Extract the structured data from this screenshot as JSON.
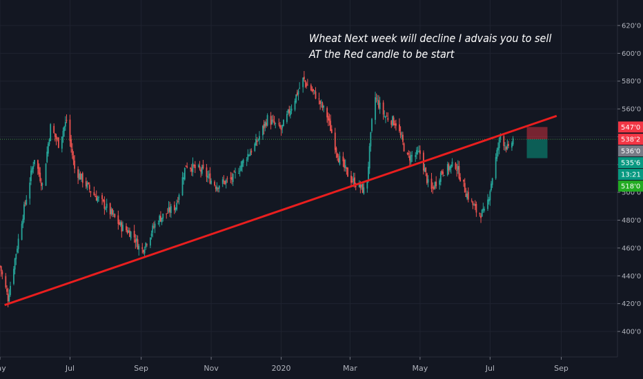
{
  "chart_data": {
    "type": "candlestick",
    "title": "",
    "annotation": [
      "Wheat Next week will decline I advais you to sell",
      "AT the Red candle to be start"
    ],
    "ylim": [
      3800,
      6300
    ],
    "y_ticks": [
      "620'0",
      "600'0",
      "580'0",
      "560'0",
      "540'0",
      "520'0",
      "500'0",
      "480'0",
      "460'0",
      "440'0",
      "420'0",
      "400'0"
    ],
    "y_tick_values": [
      6200,
      6000,
      5800,
      5600,
      5400,
      5200,
      5000,
      4800,
      4600,
      4400,
      4200,
      4000
    ],
    "x_ticks": [
      "May",
      "Jul",
      "Sep",
      "Nov",
      "2020",
      "Mar",
      "May",
      "Jul",
      "Sep"
    ],
    "x_tick_values": [
      "2019-05-01",
      "2019-07-01",
      "2019-09-01",
      "2019-11-01",
      "2020-01-01",
      "2020-03-01",
      "2020-05-01",
      "2020-07-01",
      "2020-09-01"
    ],
    "x_range": [
      "2019-05-01",
      "2020-10-20"
    ],
    "price_path": [
      {
        "date": "2019-05-01",
        "price": 4470
      },
      {
        "date": "2019-05-08",
        "price": 4240
      },
      {
        "date": "2019-05-20",
        "price": 4800
      },
      {
        "date": "2019-05-31",
        "price": 5250
      },
      {
        "date": "2019-06-07",
        "price": 5050
      },
      {
        "date": "2019-06-14",
        "price": 5470
      },
      {
        "date": "2019-06-21",
        "price": 5350
      },
      {
        "date": "2019-06-28",
        "price": 5520
      },
      {
        "date": "2019-07-05",
        "price": 5170
      },
      {
        "date": "2019-07-20",
        "price": 5000
      },
      {
        "date": "2019-08-01",
        "price": 4900
      },
      {
        "date": "2019-08-15",
        "price": 4750
      },
      {
        "date": "2019-08-25",
        "price": 4700
      },
      {
        "date": "2019-09-01",
        "price": 4570
      },
      {
        "date": "2019-09-15",
        "price": 4800
      },
      {
        "date": "2019-10-01",
        "price": 4900
      },
      {
        "date": "2019-10-10",
        "price": 5200
      },
      {
        "date": "2019-10-25",
        "price": 5150
      },
      {
        "date": "2019-11-05",
        "price": 5050
      },
      {
        "date": "2019-11-20",
        "price": 5100
      },
      {
        "date": "2019-12-01",
        "price": 5250
      },
      {
        "date": "2019-12-10",
        "price": 5350
      },
      {
        "date": "2019-12-20",
        "price": 5530
      },
      {
        "date": "2020-01-01",
        "price": 5450
      },
      {
        "date": "2020-01-10",
        "price": 5620
      },
      {
        "date": "2020-01-20",
        "price": 5810
      },
      {
        "date": "2020-01-31",
        "price": 5700
      },
      {
        "date": "2020-02-10",
        "price": 5550
      },
      {
        "date": "2020-02-20",
        "price": 5250
      },
      {
        "date": "2020-03-01",
        "price": 5100
      },
      {
        "date": "2020-03-15",
        "price": 5000
      },
      {
        "date": "2020-03-22",
        "price": 5700
      },
      {
        "date": "2020-03-31",
        "price": 5550
      },
      {
        "date": "2020-04-10",
        "price": 5500
      },
      {
        "date": "2020-04-20",
        "price": 5250
      },
      {
        "date": "2020-05-01",
        "price": 5280
      },
      {
        "date": "2020-05-10",
        "price": 5000
      },
      {
        "date": "2020-05-20",
        "price": 5150
      },
      {
        "date": "2020-06-01",
        "price": 5200
      },
      {
        "date": "2020-06-10",
        "price": 5000
      },
      {
        "date": "2020-06-20",
        "price": 4850
      },
      {
        "date": "2020-06-27",
        "price": 4850
      },
      {
        "date": "2020-07-05",
        "price": 5200
      },
      {
        "date": "2020-07-10",
        "price": 5410
      },
      {
        "date": "2020-07-17",
        "price": 5300
      },
      {
        "date": "2020-07-21",
        "price": 5382
      }
    ],
    "trendline": {
      "start": {
        "date": "2019-05-05",
        "price": 4190
      },
      "end": {
        "date": "2020-08-28",
        "price": 5550
      },
      "color": "#e91e1e"
    },
    "position": {
      "start_date": "2020-08-02",
      "end_date": "2020-08-20",
      "stop_price": 5470,
      "entry_price": 5382,
      "target_price": 5356,
      "stop_color": "#f23645",
      "target_color": "#089981"
    },
    "last_price_line": 5382,
    "price_labels": [
      {
        "text": "547'0",
        "value": 5470,
        "color": "#f23645"
      },
      {
        "text": "538'2",
        "value": 5382,
        "color": "#f23645"
      },
      {
        "text": "536'0",
        "value": 5360,
        "color": "#787b86"
      },
      {
        "text": "535'6",
        "value": 5332,
        "color": "#089981"
      },
      {
        "text": "13:21",
        "value": 5210,
        "color": "#089981"
      },
      {
        "text": "518'0",
        "value": 5160,
        "color": "#22ab22"
      }
    ],
    "up_color": "#26a69a",
    "down_color": "#ef5350",
    "grid": true
  }
}
